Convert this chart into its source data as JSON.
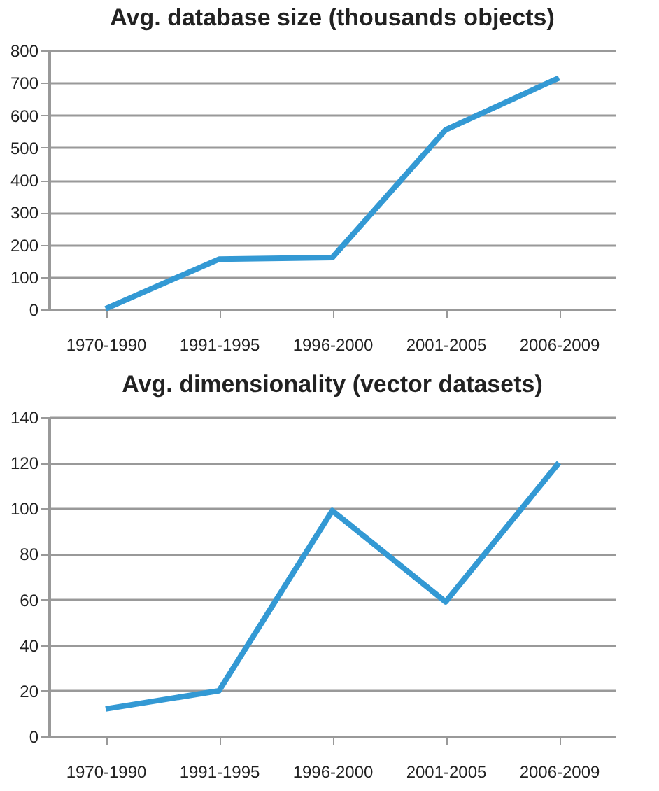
{
  "chart_data": [
    {
      "type": "line",
      "title": "Avg. database size (thousands objects)",
      "categories": [
        "1970-1990",
        "1991-1995",
        "1996-2000",
        "2001-2005",
        "2006-2009"
      ],
      "series": [
        {
          "color": "#3399d4",
          "values": [
            2,
            155,
            160,
            555,
            715
          ]
        }
      ],
      "ylim": [
        0,
        800
      ],
      "yticks": [
        0,
        100,
        200,
        300,
        400,
        500,
        600,
        700,
        800
      ],
      "grid": "y",
      "legend": false
    },
    {
      "type": "line",
      "title": "Avg. dimensionality (vector datasets)",
      "categories": [
        "1970-1990",
        "1991-1995",
        "1996-2000",
        "2001-2005",
        "2006-2009"
      ],
      "series": [
        {
          "color": "#3399d4",
          "values": [
            12,
            20,
            99,
            59,
            120
          ]
        }
      ],
      "ylim": [
        0,
        140
      ],
      "yticks": [
        0,
        20,
        40,
        60,
        80,
        100,
        120,
        140
      ],
      "grid": "y",
      "legend": false
    }
  ]
}
